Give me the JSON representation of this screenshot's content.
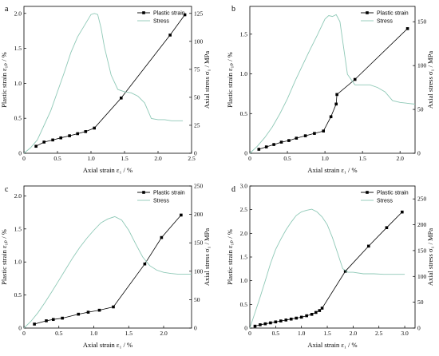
{
  "chart_data": [
    {
      "type": "line",
      "panel": "a",
      "xlabel": "Axial strain ε₁ / %",
      "ylabel": "Plastic strain ε₁ₚ / %",
      "y2label": "Axial stress σ₁ / MPa",
      "xlim": [
        0,
        2.5
      ],
      "xticks": [
        0,
        0.5,
        1.0,
        1.5,
        2.0,
        2.5
      ],
      "ylim": [
        0,
        2.1
      ],
      "yticks": [
        0,
        0.5,
        1.0,
        1.5,
        2.0
      ],
      "y2lim": [
        0,
        131.25
      ],
      "y2ticks": [
        0,
        25,
        50,
        75,
        100,
        125
      ],
      "series": [
        {
          "name": "Plastic strain",
          "axis": "left",
          "color": "#000000",
          "marker": "square",
          "x": [
            0.18,
            0.3,
            0.43,
            0.55,
            0.68,
            0.8,
            0.92,
            1.05,
            1.45,
            2.18,
            2.4
          ],
          "y": [
            0.1,
            0.16,
            0.19,
            0.22,
            0.25,
            0.28,
            0.31,
            0.36,
            0.79,
            1.69,
            1.98
          ]
        },
        {
          "name": "Stress",
          "axis": "right",
          "color": "#8fc9b7",
          "marker": "none",
          "x": [
            0,
            0.1,
            0.2,
            0.3,
            0.4,
            0.5,
            0.6,
            0.7,
            0.8,
            0.9,
            1.0,
            1.05,
            1.1,
            1.15,
            1.2,
            1.3,
            1.4,
            1.5,
            1.6,
            1.7,
            1.8,
            1.9,
            2.0,
            2.1,
            2.2,
            2.3,
            2.37
          ],
          "y": [
            0,
            5,
            12,
            25,
            38,
            55,
            72,
            90,
            104,
            114,
            124,
            125,
            124,
            112,
            95,
            70,
            57,
            55,
            54,
            51,
            45,
            31,
            30,
            30,
            29,
            29,
            29
          ]
        }
      ]
    },
    {
      "type": "line",
      "panel": "b",
      "xlabel": "Axial strain ε₁ / %",
      "ylabel": "Plastic strain ε₁ₚ / %",
      "y2label": "Axial stress σ₁ / MPa",
      "xlim": [
        0,
        2.2
      ],
      "xticks": [
        0,
        0.5,
        1.0,
        1.5,
        2.0
      ],
      "ylim": [
        0,
        1.85
      ],
      "yticks": [
        0,
        0.5,
        1.0,
        1.5
      ],
      "y2lim": [
        0,
        167.5
      ],
      "y2ticks": [
        0,
        50,
        100,
        150
      ],
      "series": [
        {
          "name": "Plastic strain",
          "axis": "left",
          "color": "#000000",
          "marker": "square",
          "x": [
            0.12,
            0.22,
            0.32,
            0.42,
            0.52,
            0.62,
            0.74,
            0.86,
            0.98,
            1.08,
            1.15,
            1.16,
            1.4,
            2.1
          ],
          "y": [
            0.05,
            0.08,
            0.11,
            0.14,
            0.16,
            0.19,
            0.22,
            0.25,
            0.28,
            0.46,
            0.62,
            0.74,
            0.93,
            1.57
          ]
        },
        {
          "name": "Stress",
          "axis": "right",
          "color": "#8fc9b7",
          "marker": "none",
          "x": [
            0,
            0.1,
            0.2,
            0.3,
            0.4,
            0.5,
            0.6,
            0.7,
            0.8,
            0.9,
            1.0,
            1.05,
            1.1,
            1.15,
            1.2,
            1.25,
            1.3,
            1.4,
            1.5,
            1.6,
            1.7,
            1.8,
            1.9,
            2.0,
            2.1,
            2.2
          ],
          "y": [
            0,
            8,
            18,
            30,
            45,
            62,
            82,
            100,
            118,
            135,
            153,
            157,
            156,
            158,
            150,
            120,
            90,
            78,
            78,
            78,
            75,
            70,
            60,
            58,
            57,
            56
          ]
        }
      ]
    },
    {
      "type": "line",
      "panel": "c",
      "xlabel": "Axial strain ε₁ / %",
      "ylabel": "Plastic strain ε₁ₚ / %",
      "y2label": "Axial stress σ₁ / MPa",
      "xlim": [
        0,
        2.4
      ],
      "xticks": [
        0,
        0.5,
        1.0,
        1.5,
        2.0
      ],
      "ylim": [
        0,
        2.15
      ],
      "yticks": [
        0,
        0.5,
        1.0,
        1.5,
        2.0
      ],
      "y2lim": [
        0,
        250
      ],
      "y2ticks": [
        0,
        50,
        100,
        150,
        200,
        250
      ],
      "series": [
        {
          "name": "Plastic strain",
          "axis": "left",
          "color": "#000000",
          "marker": "square",
          "x": [
            0.15,
            0.32,
            0.42,
            0.55,
            0.78,
            0.92,
            1.08,
            1.28,
            1.73,
            1.97,
            2.25
          ],
          "y": [
            0.06,
            0.11,
            0.13,
            0.15,
            0.21,
            0.24,
            0.27,
            0.32,
            0.97,
            1.37,
            1.71
          ]
        },
        {
          "name": "Stress",
          "axis": "right",
          "color": "#8fc9b7",
          "marker": "none",
          "x": [
            0,
            0.1,
            0.2,
            0.3,
            0.4,
            0.5,
            0.6,
            0.7,
            0.8,
            0.9,
            1.0,
            1.1,
            1.2,
            1.3,
            1.4,
            1.5,
            1.6,
            1.7,
            1.8,
            1.9,
            2.0,
            2.1,
            2.2,
            2.3,
            2.4
          ],
          "y": [
            0,
            12,
            27,
            45,
            64,
            84,
            104,
            124,
            142,
            158,
            172,
            185,
            192,
            196,
            190,
            172,
            148,
            125,
            110,
            102,
            98,
            96,
            95,
            95,
            95
          ]
        }
      ]
    },
    {
      "type": "line",
      "panel": "d",
      "xlabel": "Axial strain ε₁ / %",
      "ylabel": "Plastic strain ε₁ₚ / %",
      "y2label": "Axial stress σ₁ / MPa",
      "xlim": [
        0,
        3.2
      ],
      "xticks": [
        0,
        0.5,
        1.0,
        1.5,
        2.0,
        2.5,
        3.0
      ],
      "ylim": [
        0,
        3.0
      ],
      "yticks": [
        0,
        0.5,
        1.0,
        1.5,
        2.0,
        2.5,
        3.0
      ],
      "y2lim": [
        0,
        275
      ],
      "y2ticks": [
        0,
        50,
        100,
        150,
        200,
        250
      ],
      "series": [
        {
          "name": "Plastic strain",
          "axis": "left",
          "color": "#000000",
          "marker": "square",
          "x": [
            0.1,
            0.2,
            0.3,
            0.4,
            0.5,
            0.6,
            0.7,
            0.8,
            0.9,
            1.0,
            1.1,
            1.2,
            1.28,
            1.35,
            1.4,
            1.85,
            2.3,
            2.65,
            2.95
          ],
          "y": [
            0.04,
            0.07,
            0.09,
            0.11,
            0.13,
            0.15,
            0.17,
            0.19,
            0.21,
            0.23,
            0.26,
            0.29,
            0.33,
            0.37,
            0.42,
            1.2,
            1.73,
            2.12,
            2.45
          ]
        },
        {
          "name": "Stress",
          "axis": "right",
          "color": "#8fc9b7",
          "marker": "none",
          "x": [
            0,
            0.1,
            0.2,
            0.3,
            0.4,
            0.5,
            0.6,
            0.7,
            0.8,
            0.9,
            1.0,
            1.1,
            1.2,
            1.3,
            1.4,
            1.5,
            1.6,
            1.7,
            1.8,
            1.9,
            2.0,
            2.2,
            2.4,
            2.6,
            2.8,
            3.0
          ],
          "y": [
            0,
            30,
            60,
            92,
            125,
            152,
            172,
            190,
            205,
            218,
            225,
            228,
            230,
            225,
            215,
            200,
            175,
            145,
            115,
            108,
            108,
            105,
            105,
            104,
            104,
            104
          ]
        }
      ]
    }
  ]
}
